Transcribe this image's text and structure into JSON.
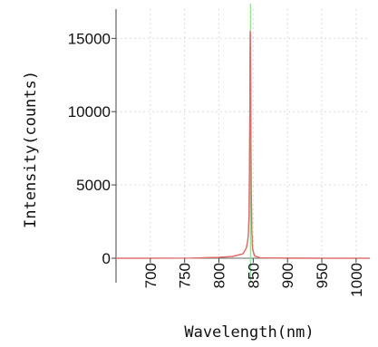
{
  "chart_data": {
    "type": "line",
    "xlabel": "Wavelength(nm)",
    "ylabel": "Intensity(counts)",
    "xlim": [
      650,
      1020
    ],
    "ylim": [
      0,
      17000
    ],
    "x_ticks": [
      700,
      750,
      800,
      850,
      900,
      950,
      1000
    ],
    "y_ticks": [
      0,
      5000,
      10000,
      15000
    ],
    "x_tick_labels": [
      "700",
      "750",
      "800",
      "850",
      "900",
      "950",
      "1000"
    ],
    "y_tick_labels": [
      "0",
      "5000",
      "10000",
      "15000"
    ],
    "grid": true,
    "marker_x": 846,
    "series": [
      {
        "color": "#c98a6a",
        "x": [
          650,
          700,
          760,
          800,
          820,
          835,
          840,
          842,
          843,
          844,
          845,
          845.5,
          846,
          846.5,
          847,
          848,
          849,
          852,
          860,
          900,
          950,
          1020
        ],
        "values": [
          0,
          0,
          10,
          60,
          120,
          300,
          700,
          1200,
          1700,
          3000,
          9000,
          14500,
          14400,
          10000,
          5000,
          1800,
          600,
          150,
          30,
          5,
          0,
          0
        ]
      },
      {
        "color": "#e06a6a",
        "x": [
          650,
          700,
          760,
          800,
          820,
          835,
          840,
          842,
          843,
          844,
          845,
          845.5,
          846,
          846.5,
          847,
          848,
          849,
          852,
          860,
          900,
          950,
          1020
        ],
        "values": [
          0,
          0,
          10,
          60,
          120,
          300,
          700,
          1200,
          1700,
          3000,
          9500,
          15500,
          15300,
          10500,
          5200,
          1900,
          650,
          160,
          30,
          5,
          0,
          0
        ]
      }
    ]
  }
}
